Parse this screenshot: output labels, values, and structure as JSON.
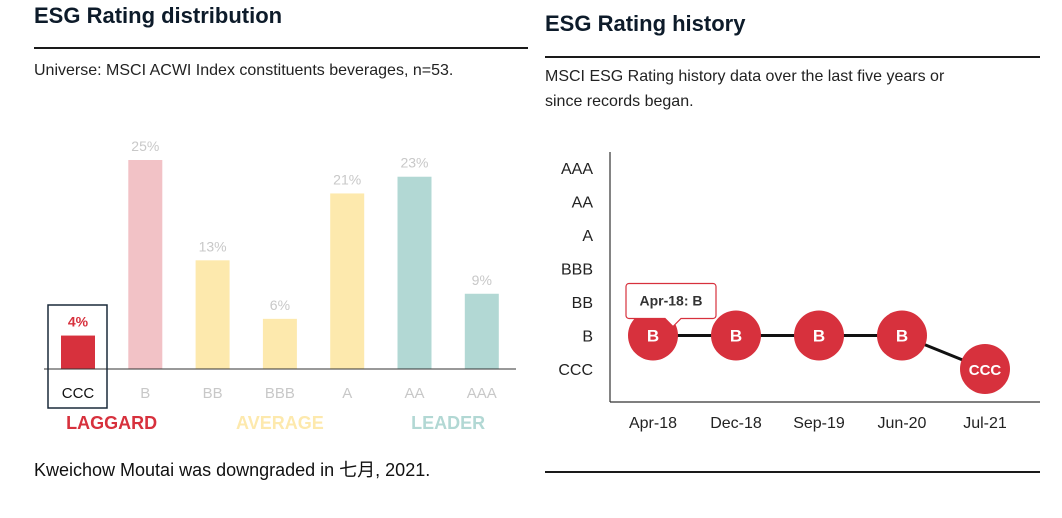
{
  "distribution": {
    "title": "ESG Rating distribution",
    "subtitle": "Universe: MSCI ACWI Index constituents beverages, n=53.",
    "footer": "Kweichow Moutai was downgraded in 七月, 2021."
  },
  "history": {
    "title": "ESG Rating history",
    "subtitle_line1": "MSCI ESG Rating history data over the last five years or",
    "subtitle_line2": "since records began."
  },
  "colors": {
    "laggard_selected": "#d7313d",
    "laggard": "#f2c2c6",
    "average": "#fde9ad",
    "leader": "#b2d8d4",
    "muted_label": "#c8c8c8",
    "node": "#d7313d"
  },
  "chart_data": [
    {
      "type": "bar",
      "title": "ESG Rating distribution",
      "categories": [
        "CCC",
        "B",
        "BB",
        "BBB",
        "A",
        "AA",
        "AAA"
      ],
      "values": [
        4,
        25,
        13,
        6,
        21,
        23,
        9
      ],
      "value_labels": [
        "4%",
        "25%",
        "13%",
        "6%",
        "21%",
        "23%",
        "9%"
      ],
      "groups": [
        "laggard",
        "laggard",
        "average",
        "average",
        "average",
        "leader",
        "leader"
      ],
      "group_labels": [
        {
          "key": "laggard",
          "label": "LAGGARD"
        },
        {
          "key": "average",
          "label": "AVERAGE"
        },
        {
          "key": "leader",
          "label": "LEADER"
        }
      ],
      "highlighted_category": "CCC",
      "ylim": [
        0,
        25
      ],
      "grid": false
    },
    {
      "type": "line",
      "title": "ESG Rating history",
      "x": [
        "Apr-18",
        "Dec-18",
        "Sep-19",
        "Jun-20",
        "Jul-21"
      ],
      "y": [
        "B",
        "B",
        "B",
        "B",
        "CCC"
      ],
      "y_categories": [
        "CCC",
        "B",
        "BB",
        "BBB",
        "A",
        "AA",
        "AAA"
      ],
      "tooltip": "Apr-18: B",
      "grid": false
    }
  ]
}
